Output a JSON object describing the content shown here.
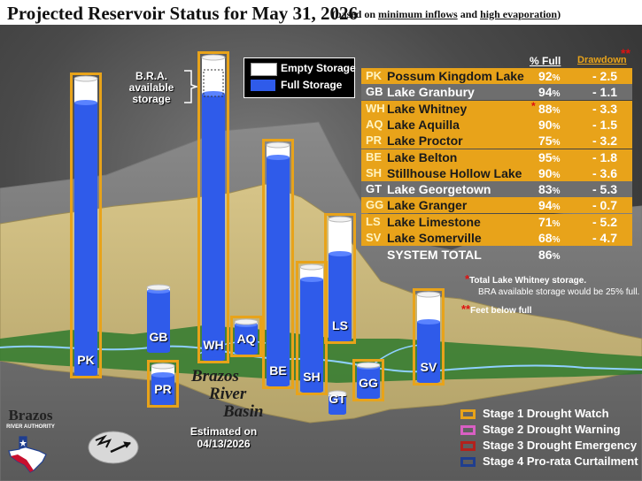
{
  "title": {
    "main": "Projected Reservoir Status for May 31, 2026",
    "sub_prefix": "(based on ",
    "sub_inflows": "minimum inflows",
    "sub_and": " and ",
    "sub_evap": "high evaporation",
    "sub_suffix": ")"
  },
  "storage_legend": {
    "empty": "Empty Storage",
    "full": "Full Storage"
  },
  "bra_note": "B.R.A. available storage",
  "table_headers": {
    "pct_full": "% Full",
    "drawdown": "Drawdown",
    "drawdown_marker": "**"
  },
  "lakes": [
    {
      "abbr": "PK",
      "name": "Possum Kingdom Lake",
      "pct": "92",
      "drawdown": "- 2.5",
      "fill": 0.92,
      "stage": 1,
      "flag": ""
    },
    {
      "abbr": "GB",
      "name": "Lake Granbury",
      "pct": "94",
      "drawdown": "- 1.1",
      "fill": 0.94,
      "stage": 0,
      "flag": ""
    },
    {
      "abbr": "WH",
      "name": "Lake Whitney",
      "pct": "88",
      "drawdown": "- 3.3",
      "fill": 0.88,
      "stage": 1,
      "flag": "*"
    },
    {
      "abbr": "AQ",
      "name": "Lake Aquilla",
      "pct": "90",
      "drawdown": "- 1.5",
      "fill": 0.9,
      "stage": 1,
      "flag": ""
    },
    {
      "abbr": "PR",
      "name": "Lake Proctor",
      "pct": "75",
      "drawdown": "- 3.2",
      "fill": 0.75,
      "stage": 1,
      "flag": ""
    },
    {
      "abbr": "BE",
      "name": "Lake Belton",
      "pct": "95",
      "drawdown": "- 1.8",
      "fill": 0.95,
      "stage": 1,
      "flag": ""
    },
    {
      "abbr": "SH",
      "name": "Stillhouse Hollow Lake",
      "pct": "90",
      "drawdown": "- 3.6",
      "fill": 0.9,
      "stage": 1,
      "flag": ""
    },
    {
      "abbr": "GT",
      "name": "Lake Georgetown",
      "pct": "83",
      "drawdown": "- 5.3",
      "fill": 0.83,
      "stage": 0,
      "flag": ""
    },
    {
      "abbr": "GG",
      "name": "Lake Granger",
      "pct": "94",
      "drawdown": "- 0.7",
      "fill": 0.94,
      "stage": 1,
      "flag": ""
    },
    {
      "abbr": "LS",
      "name": "Lake Limestone",
      "pct": "71",
      "drawdown": "- 5.2",
      "fill": 0.71,
      "stage": 1,
      "flag": ""
    },
    {
      "abbr": "SV",
      "name": "Lake Somerville",
      "pct": "68",
      "drawdown": "- 4.7",
      "fill": 0.68,
      "stage": 1,
      "flag": ""
    }
  ],
  "pct_unit": "%",
  "system_total": {
    "label": "SYSTEM TOTAL",
    "pct": "86"
  },
  "footnotes": {
    "star": "*",
    "star_text": "Total Lake Whitney storage.",
    "star_text2": "BRA available storage would be 25% full.",
    "dstar": "**",
    "dstar_text": "Feet below full"
  },
  "basin_label": [
    "Brazos",
    "River",
    "Basin"
  ],
  "estimate": {
    "line1": "Estimated on",
    "line2": "04/13/2026"
  },
  "logo": {
    "name": "Brazos",
    "sub": "RIVER AUTHORITY"
  },
  "stage_legend": [
    {
      "label": "Stage 1 Drought Watch",
      "color": "#e8a31a"
    },
    {
      "label": "Stage 2 Drought Warning",
      "color": "#d95fc3"
    },
    {
      "label": "Stage 3 Drought Emergency",
      "color": "#b3211c"
    },
    {
      "label": "Stage 4 Pro-rata Curtailment",
      "color": "#1f3e8f"
    }
  ],
  "colors": {
    "full": "#2f5bea",
    "empty": "#ffffff",
    "row_gold": "#e8a31a",
    "row_tan": "#e3ba56",
    "row_gray": "#6e6e6e"
  }
}
